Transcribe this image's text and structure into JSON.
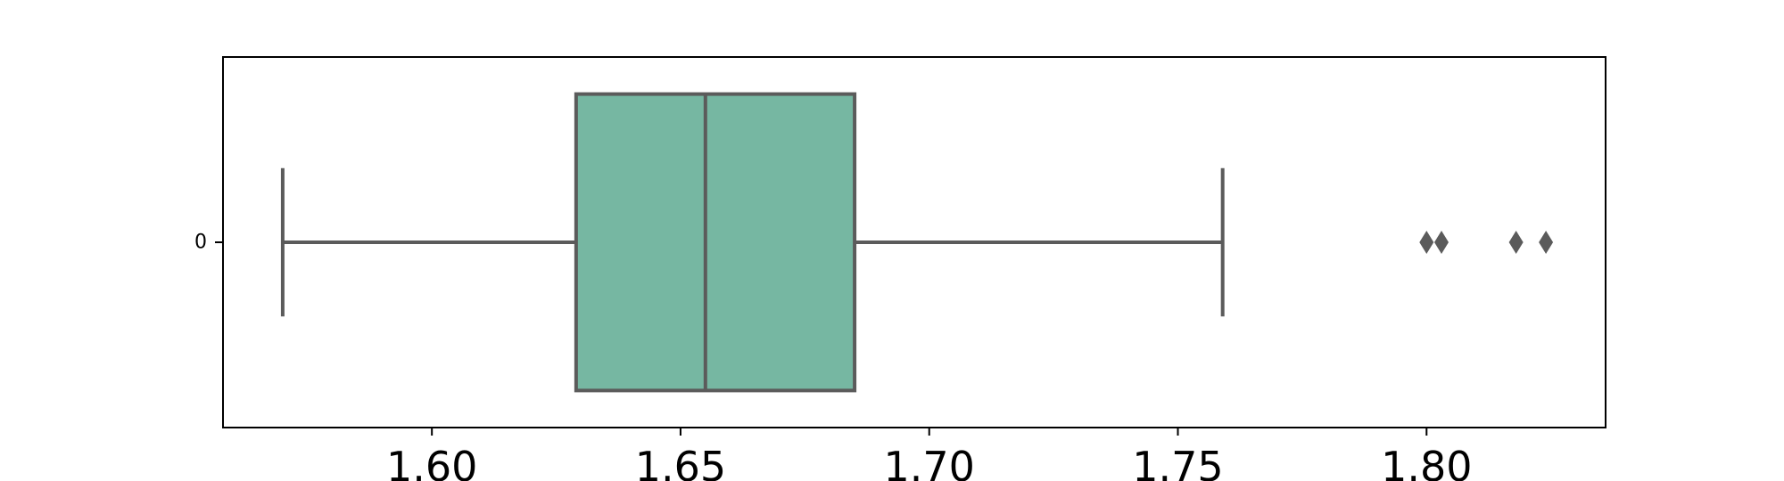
{
  "chart_data": {
    "type": "box",
    "orientation": "horizontal",
    "title": "",
    "xlabel": "",
    "ylabel": "",
    "xlim": [
      1.558,
      1.836
    ],
    "xticks": [
      1.6,
      1.65,
      1.7,
      1.75,
      1.8
    ],
    "xtick_labels": [
      "1.60",
      "1.65",
      "1.70",
      "1.75",
      "1.80"
    ],
    "categories": [
      "0"
    ],
    "series": [
      {
        "box_color": "#76b7a2",
        "line_color": "#5b5b5b",
        "whisker_low": 1.57,
        "q1": 1.629,
        "median": 1.655,
        "q3": 1.685,
        "whisker_high": 1.759,
        "outliers": [
          1.8,
          1.803,
          1.818,
          1.824
        ]
      }
    ],
    "grid": false
  }
}
